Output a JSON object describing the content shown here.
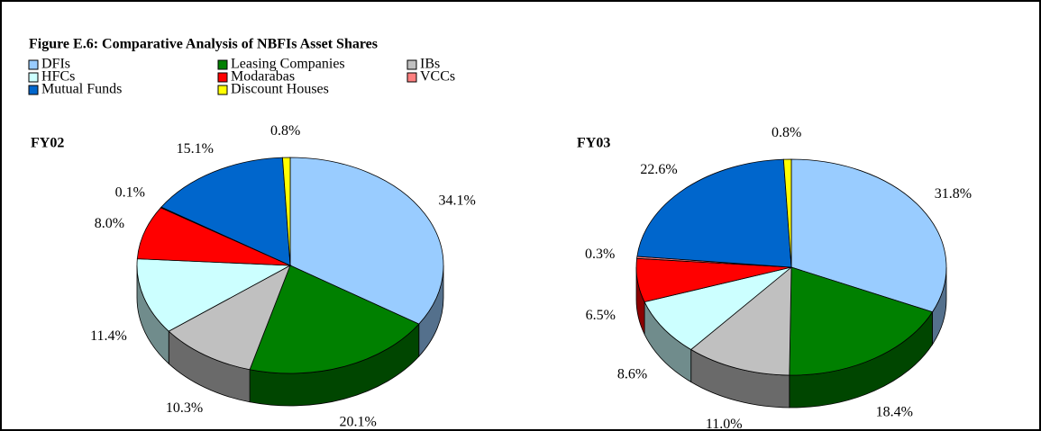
{
  "title": "Figure E.6: Comparative Analysis of NBFIs Asset Shares",
  "chart_data": [
    {
      "type": "pie",
      "title": "FY02",
      "categories": [
        "DFIs",
        "Leasing Companies",
        "IBs",
        "HFCs",
        "Modarabas",
        "VCCs",
        "Mutual Funds",
        "Discount Houses"
      ],
      "colors": [
        "#99ccff",
        "#008000",
        "#c0c0c0",
        "#ccffff",
        "#ff0000",
        "#ff8080",
        "#0066cc",
        "#ffff00"
      ],
      "values": [
        34.1,
        20.1,
        10.3,
        11.4,
        8.0,
        0.1,
        15.1,
        0.8
      ],
      "value_labels": [
        "34.1%",
        "20.1%",
        "10.3%",
        "11.4%",
        "8.0%",
        "0.1%",
        "15.1%",
        "0.8%"
      ]
    },
    {
      "type": "pie",
      "title": "FY03",
      "categories": [
        "DFIs",
        "Leasing Companies",
        "IBs",
        "HFCs",
        "Modarabas",
        "VCCs",
        "Mutual Funds",
        "Discount Houses"
      ],
      "colors": [
        "#99ccff",
        "#008000",
        "#c0c0c0",
        "#ccffff",
        "#ff0000",
        "#ff8080",
        "#0066cc",
        "#ffff00"
      ],
      "values": [
        31.8,
        18.4,
        11.0,
        8.6,
        6.5,
        0.3,
        22.6,
        0.8
      ],
      "value_labels": [
        "31.8%",
        "18.4%",
        "11.0%",
        "8.6%",
        "6.5%",
        "0.3%",
        "22.6%",
        "0.8%"
      ]
    }
  ]
}
